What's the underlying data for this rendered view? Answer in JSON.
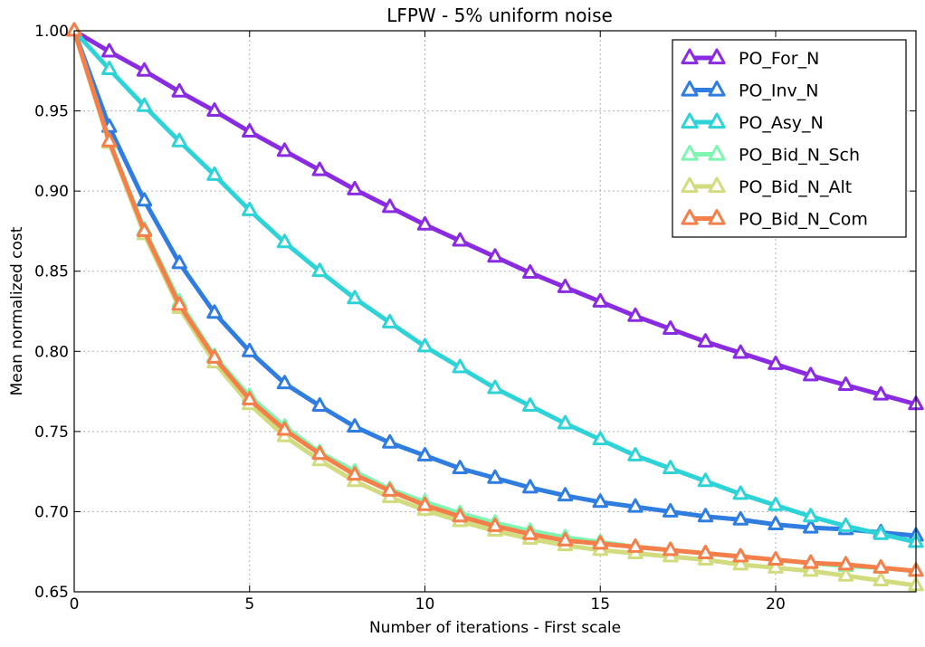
{
  "chart_data": {
    "type": "line",
    "title": "LFPW - 5% uniform noise",
    "xlabel": "Number of iterations - First scale",
    "ylabel": "Mean normalized cost",
    "xlim": [
      0,
      24
    ],
    "ylim": [
      0.65,
      1.0
    ],
    "xticks": [
      0,
      5,
      10,
      15,
      20
    ],
    "yticks": [
      0.65,
      0.7,
      0.75,
      0.8,
      0.85,
      0.9,
      0.95,
      1.0
    ],
    "grid": true,
    "legend_position": "top-right",
    "marker": "triangle-up-open",
    "x": [
      0,
      1,
      2,
      3,
      4,
      5,
      6,
      7,
      8,
      9,
      10,
      11,
      12,
      13,
      14,
      15,
      16,
      17,
      18,
      19,
      20,
      21,
      22,
      23,
      24
    ],
    "series": [
      {
        "name": "PO_For_N",
        "color": "#8a2be2",
        "values": [
          1.0,
          0.987,
          0.975,
          0.962,
          0.95,
          0.937,
          0.925,
          0.913,
          0.901,
          0.89,
          0.879,
          0.869,
          0.859,
          0.849,
          0.84,
          0.831,
          0.822,
          0.814,
          0.806,
          0.799,
          0.792,
          0.785,
          0.779,
          0.773,
          0.767
        ]
      },
      {
        "name": "PO_Inv_N",
        "color": "#2f7de1",
        "values": [
          1.0,
          0.94,
          0.894,
          0.855,
          0.824,
          0.8,
          0.78,
          0.766,
          0.753,
          0.743,
          0.735,
          0.727,
          0.721,
          0.715,
          0.71,
          0.706,
          0.703,
          0.7,
          0.697,
          0.695,
          0.692,
          0.69,
          0.689,
          0.687,
          0.685
        ]
      },
      {
        "name": "PO_Asy_N",
        "color": "#2ed3d8",
        "values": [
          1.0,
          0.976,
          0.953,
          0.931,
          0.91,
          0.888,
          0.868,
          0.85,
          0.833,
          0.818,
          0.803,
          0.79,
          0.777,
          0.766,
          0.755,
          0.745,
          0.735,
          0.727,
          0.719,
          0.711,
          0.704,
          0.697,
          0.691,
          0.686,
          0.681
        ]
      },
      {
        "name": "PO_Bid_N_Sch",
        "color": "#7ff5b2",
        "values": [
          1.0,
          0.931,
          0.876,
          0.831,
          0.797,
          0.772,
          0.753,
          0.737,
          0.725,
          0.714,
          0.706,
          0.699,
          0.693,
          0.688,
          0.684,
          0.681,
          0.678,
          0.676,
          0.674,
          0.672,
          0.67,
          0.668,
          0.666,
          0.665,
          0.663
        ]
      },
      {
        "name": "PO_Bid_N_Alt",
        "color": "#d2dc7f",
        "values": [
          1.0,
          0.93,
          0.873,
          0.827,
          0.793,
          0.767,
          0.747,
          0.732,
          0.719,
          0.709,
          0.701,
          0.694,
          0.688,
          0.683,
          0.679,
          0.676,
          0.674,
          0.672,
          0.67,
          0.667,
          0.665,
          0.663,
          0.66,
          0.657,
          0.654
        ]
      },
      {
        "name": "PO_Bid_N_Com",
        "color": "#f47f4a",
        "values": [
          1.0,
          0.931,
          0.875,
          0.829,
          0.796,
          0.77,
          0.751,
          0.736,
          0.723,
          0.713,
          0.704,
          0.697,
          0.691,
          0.686,
          0.682,
          0.68,
          0.678,
          0.676,
          0.674,
          0.672,
          0.67,
          0.668,
          0.667,
          0.665,
          0.663
        ]
      }
    ]
  }
}
